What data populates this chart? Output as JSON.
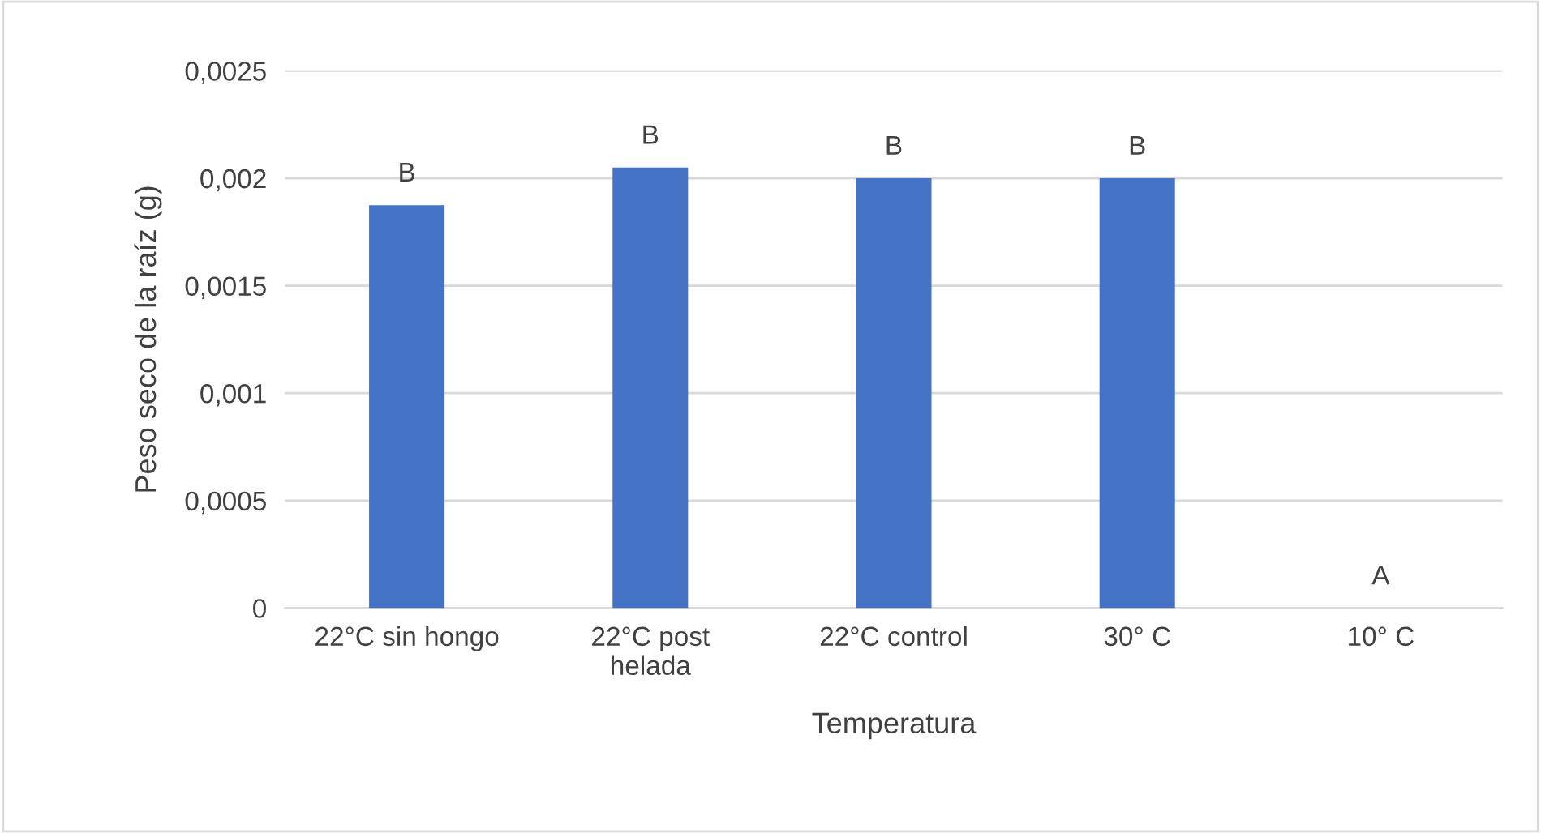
{
  "chart_data": {
    "type": "bar",
    "xlabel": "Temperatura",
    "ylabel": "Peso seco de la raíz (g)",
    "categories": [
      "22°C sin hongo",
      "22°C post\nhelada",
      "22°C control",
      "30° C",
      "10° C"
    ],
    "values": [
      0.001875,
      0.00205,
      0.002,
      0.002,
      0
    ],
    "color": "#4472c4",
    "ylim": [
      0,
      0.0025
    ],
    "yticks": [
      {
        "value": 0,
        "label": "0"
      },
      {
        "value": 0.0005,
        "label": "0,0005"
      },
      {
        "value": 0.001,
        "label": "0,001"
      },
      {
        "value": 0.0015,
        "label": "0,0015"
      },
      {
        "value": 0.002,
        "label": "0,002"
      },
      {
        "value": 0.0025,
        "label": "0,0025"
      }
    ],
    "grid": "y",
    "annotations": [
      {
        "text": "B",
        "x": "22°C sin hongo",
        "y": 0.001875
      },
      {
        "text": "B",
        "x": "22°C post\nhelada",
        "y": 0.00205
      },
      {
        "text": "B",
        "x": "22°C control",
        "y": 0.002
      },
      {
        "text": "B",
        "x": "30° C",
        "y": 0.002
      },
      {
        "text": "A",
        "x": "10° C",
        "y": 0
      }
    ]
  }
}
